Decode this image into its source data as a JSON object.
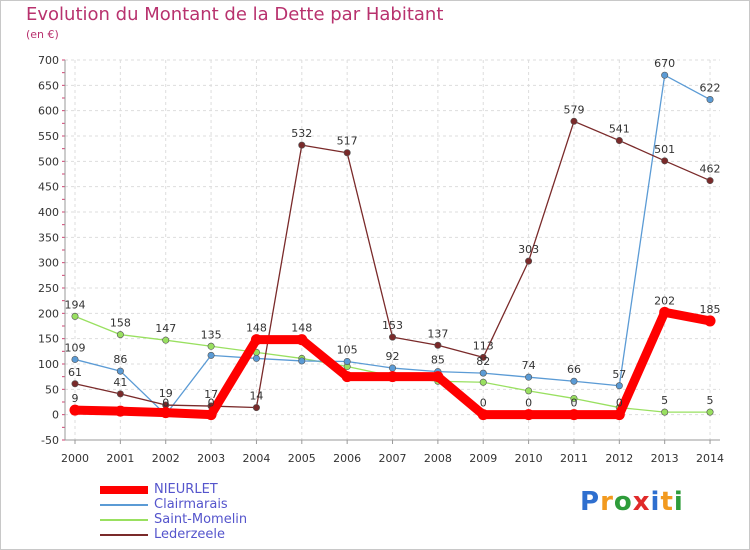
{
  "chart_data": {
    "type": "line",
    "title": "Evolution du Montant de la Dette par Habitant",
    "unit_label": "(en €)",
    "categories": [
      "2000",
      "2001",
      "2002",
      "2003",
      "2004",
      "2005",
      "2006",
      "2007",
      "2008",
      "2009",
      "2010",
      "2011",
      "2012",
      "2013",
      "2014"
    ],
    "y_ticks": [
      "-50",
      "0",
      "50",
      "100",
      "150",
      "200",
      "250",
      "300",
      "350",
      "400",
      "450",
      "500",
      "550",
      "600",
      "650",
      "700"
    ],
    "ylim": [
      -50,
      700
    ],
    "series": [
      {
        "name": "NIEURLET",
        "color": "#ff0000",
        "values": [
          9,
          7,
          4,
          0,
          148,
          148,
          75,
          75,
          75,
          0,
          0,
          0,
          0,
          202,
          185
        ],
        "labels": [
          "9",
          "",
          "",
          "0",
          "148",
          "148",
          "",
          "",
          "",
          "0",
          "0",
          "0",
          "0",
          "202",
          "185"
        ]
      },
      {
        "name": "Clairmarais",
        "color": "#5b9bd5",
        "values": [
          109,
          86,
          0,
          117,
          111,
          106,
          105,
          92,
          85,
          82,
          74,
          66,
          57,
          670,
          622
        ],
        "labels": [
          "109",
          "86",
          "0",
          "",
          "",
          "",
          "105",
          "92",
          "85",
          "82",
          "74",
          "66",
          "57",
          "670",
          "622"
        ]
      },
      {
        "name": "Saint-Momelin",
        "color": "#99e060",
        "values": [
          194,
          158,
          147,
          135,
          123,
          111,
          95,
          76,
          66,
          64,
          47,
          32,
          14,
          5,
          5
        ],
        "labels": [
          "194",
          "158",
          "147",
          "135",
          "",
          "",
          "",
          "",
          "",
          "",
          "",
          "",
          "",
          "5",
          "5"
        ]
      },
      {
        "name": "Lederzeele",
        "color": "#7a2a2a",
        "values": [
          61,
          41,
          19,
          17,
          14,
          532,
          517,
          153,
          137,
          113,
          303,
          579,
          541,
          501,
          462
        ],
        "labels": [
          "61",
          "41",
          "19",
          "17",
          "14",
          "532",
          "517",
          "153",
          "137",
          "113",
          "303",
          "579",
          "541",
          "501",
          "462"
        ]
      }
    ]
  },
  "logo": {
    "text": "Proxiti",
    "colors": [
      "#2e6fcf",
      "#f29a1f",
      "#2e9c3a",
      "#e02a2a",
      "#2e6fcf",
      "#f29a1f",
      "#2e9c3a"
    ]
  }
}
